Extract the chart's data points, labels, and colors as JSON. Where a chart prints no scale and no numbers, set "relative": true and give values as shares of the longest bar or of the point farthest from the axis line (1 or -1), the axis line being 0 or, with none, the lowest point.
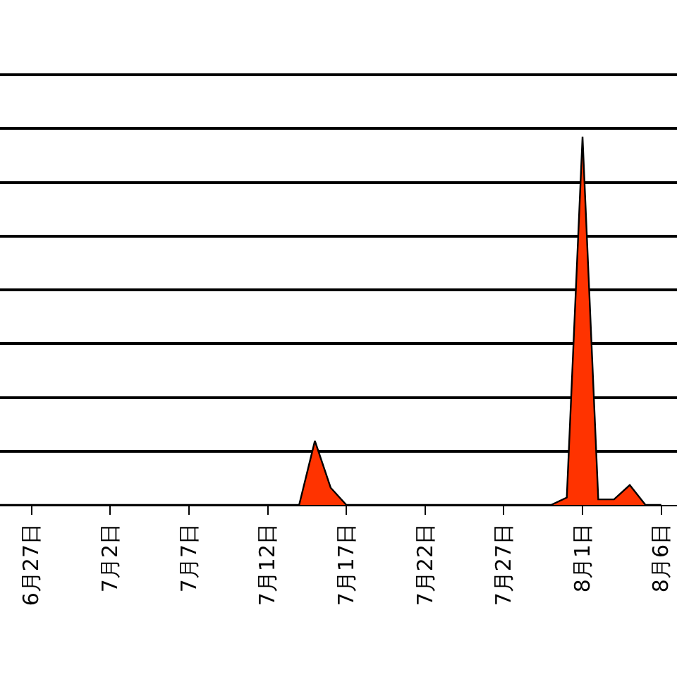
{
  "chart_data": {
    "type": "area",
    "relative": true,
    "grid": "y",
    "x": [
      "--06-25",
      "--07-14",
      "--07-15",
      "--07-16",
      "--07-17",
      "--07-30",
      "--07-31",
      "--08-01",
      "--08-02",
      "--08-03",
      "--08-04",
      "--08-05",
      "--08-06"
    ],
    "series": [
      {
        "color": "#ff3300",
        "values": [
          0,
          0,
          0.174,
          0.047,
          0,
          0,
          0.02,
          1,
          0.015,
          0.015,
          0.054,
          0,
          0
        ]
      }
    ],
    "xlim": [
      "--06-25",
      "--08-07"
    ],
    "xticks": [
      {
        "value": "--06-27",
        "label": "6月27日"
      },
      {
        "value": "--07-02",
        "label": "7月2日"
      },
      {
        "value": "--07-07",
        "label": "7月7日"
      },
      {
        "value": "--07-12",
        "label": "7月12日"
      },
      {
        "value": "--07-17",
        "label": "7月17日"
      },
      {
        "value": "--07-22",
        "label": "7月22日"
      },
      {
        "value": "--07-27",
        "label": "7月27日"
      },
      {
        "value": "--08-01",
        "label": "8月1日"
      },
      {
        "value": "--08-06",
        "label": "8月6日"
      }
    ],
    "tick_labels": "x"
  }
}
